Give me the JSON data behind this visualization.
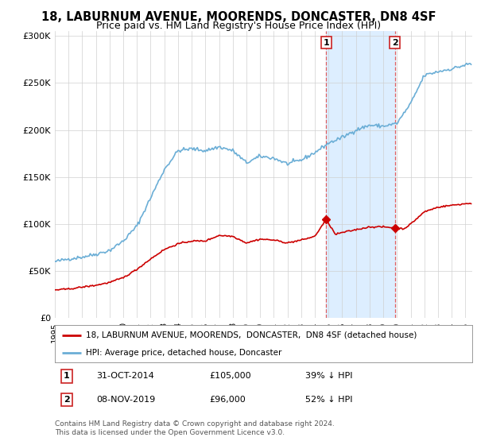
{
  "title": "18, LABURNUM AVENUE, MOORENDS, DONCASTER, DN8 4SF",
  "subtitle": "Price paid vs. HM Land Registry's House Price Index (HPI)",
  "title_fontsize": 10.5,
  "subtitle_fontsize": 9,
  "ylabel_ticks": [
    "£0",
    "£50K",
    "£100K",
    "£150K",
    "£200K",
    "£250K",
    "£300K"
  ],
  "ytick_values": [
    0,
    50000,
    100000,
    150000,
    200000,
    250000,
    300000
  ],
  "ylim": [
    0,
    305000
  ],
  "xlim_start": 1995.0,
  "xlim_end": 2025.5,
  "hpi_color": "#6baed6",
  "price_color": "#cc0000",
  "sale1_x": 2014.83,
  "sale1_y": 105000,
  "sale2_x": 2019.85,
  "sale2_y": 96000,
  "vline_color": "#e06060",
  "shade_color": "#ddeeff",
  "legend_house": "18, LABURNUM AVENUE, MOORENDS,  DONCASTER,  DN8 4SF (detached house)",
  "legend_hpi": "HPI: Average price, detached house, Doncaster",
  "annotation1_label": "1",
  "annotation1_date": "31-OCT-2014",
  "annotation1_price": "£105,000",
  "annotation1_pct": "39% ↓ HPI",
  "annotation2_label": "2",
  "annotation2_date": "08-NOV-2019",
  "annotation2_price": "£96,000",
  "annotation2_pct": "52% ↓ HPI",
  "footer": "Contains HM Land Registry data © Crown copyright and database right 2024.\nThis data is licensed under the Open Government Licence v3.0.",
  "background_color": "#ffffff"
}
